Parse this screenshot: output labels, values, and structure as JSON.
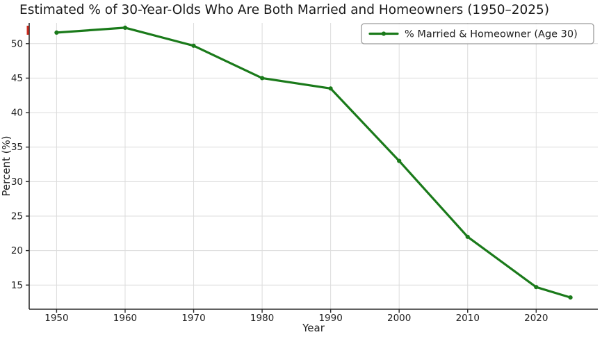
{
  "chart_data": {
    "type": "line",
    "title": "Estimated % of 30-Year-Olds Who Are Both Married and Homeowners (1950–2025)",
    "xlabel": "Year",
    "ylabel": "Percent (%)",
    "x": [
      1950,
      1960,
      1970,
      1980,
      1990,
      2000,
      2010,
      2020,
      2025
    ],
    "series": [
      {
        "name": "% Married & Homeowner (Age 30)",
        "values": [
          51.6,
          52.3,
          49.7,
          45.0,
          43.5,
          33.0,
          22.0,
          14.7,
          13.2
        ],
        "color": "#1a7a1a"
      }
    ],
    "xlim": [
      1946,
      2029
    ],
    "ylim": [
      11.5,
      53
    ],
    "xticks": [
      1950,
      1960,
      1970,
      1980,
      1990,
      2000,
      2010,
      2020
    ],
    "yticks": [
      15,
      20,
      25,
      30,
      35,
      40,
      45,
      50
    ],
    "grid": true,
    "legend_position": "top-right",
    "colors": {
      "line": "#1a7a1a",
      "grid": "#dcdcdc",
      "spine": "#2b2b2b",
      "tick_text": "#222222",
      "legend_border": "#9c9c9c",
      "red_mark": "#cc2a1e"
    }
  }
}
